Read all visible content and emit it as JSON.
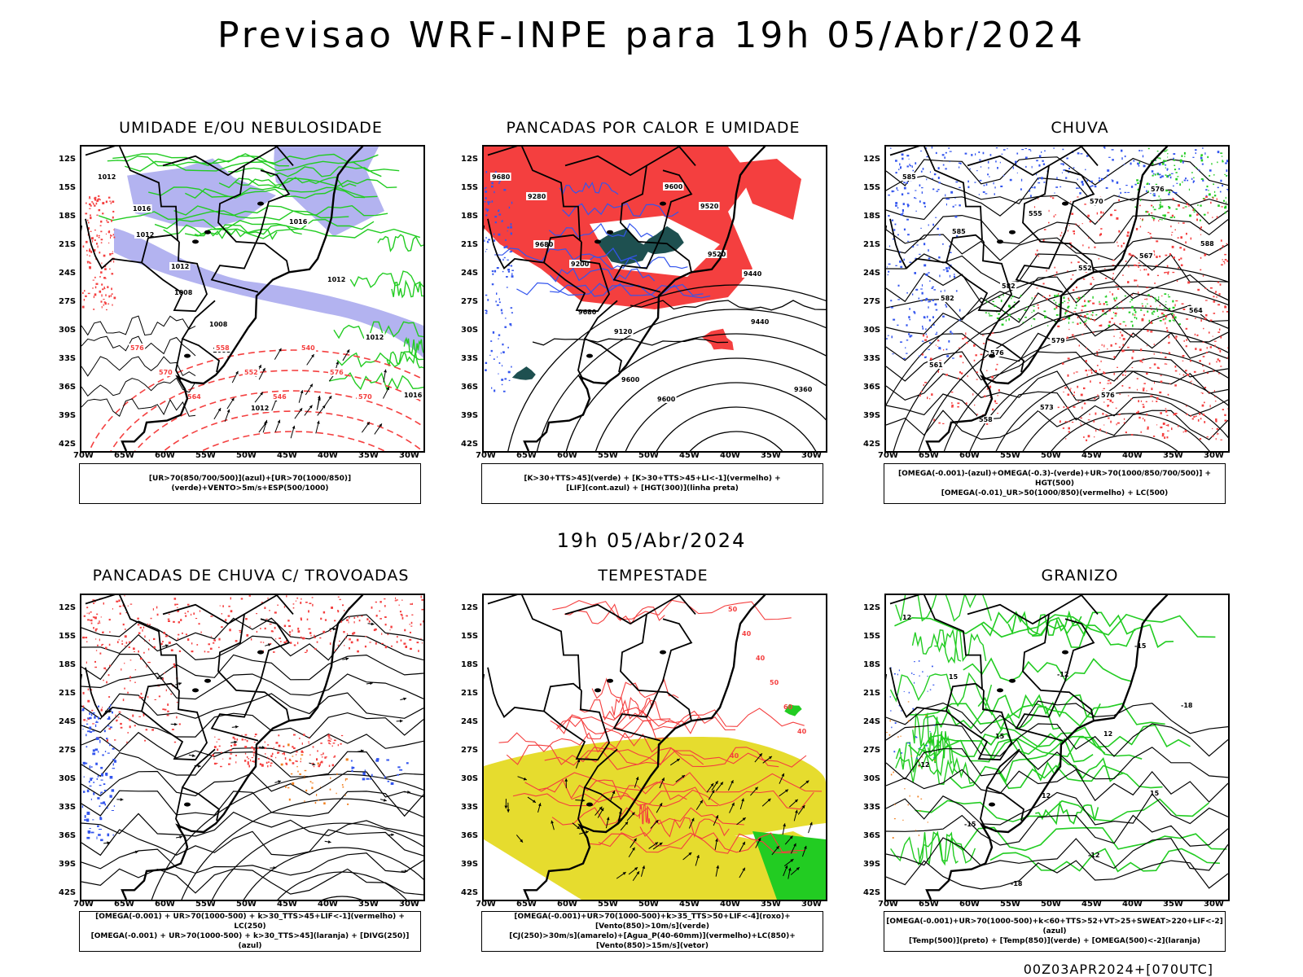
{
  "title": "Previsao WRF-INPE  para 19h 05/Abr/2024",
  "mid_title": "19h 05/Abr/2024",
  "run_stamp": "00Z03APR2024+[070UTC]",
  "lat_ticks": [
    "12S",
    "15S",
    "18S",
    "21S",
    "24S",
    "27S",
    "30S",
    "33S",
    "36S",
    "39S",
    "42S"
  ],
  "lon_ticks": [
    "70W",
    "65W",
    "60W",
    "55W",
    "50W",
    "45W",
    "40W",
    "35W",
    "30W"
  ],
  "colors": {
    "blue": "#3355ee",
    "lavender": "#b3b3f0",
    "green": "#22cc22",
    "red": "#f43f3f",
    "yellow": "#e6dc2e",
    "darkteal": "#1e5050",
    "orange": "#f08020",
    "black": "#000000"
  },
  "panels": [
    {
      "title": "UMIDADE E/OU NEBULOSIDADE",
      "legend": [
        "[UR>70(850/700/500)](azul)+[UR>70(1000/850)](verde)+VENTO>5m/s+ESP(500/1000)"
      ],
      "labels": [
        "1012",
        "1012",
        "1008",
        "1008",
        "1012",
        "1016",
        "1012",
        "1012",
        "1016",
        "1016",
        "1012",
        "1008",
        "576",
        "570",
        "564",
        "558",
        "552",
        "546",
        "540",
        "576",
        "570"
      ]
    },
    {
      "title": "PANCADAS POR CALOR E UMIDADE",
      "legend": [
        "[K>30+TTS>45](verde) + [K>30+TTS>45+LI<-1](vermelho) +",
        "[LIF](cont.azul) + [HGT(300)](linha preta)"
      ],
      "labels": [
        "9680",
        "9680",
        "9680",
        "9600",
        "9600",
        "9520",
        "9440",
        "9360",
        "9280",
        "9200",
        "9120",
        "9600",
        "9520",
        "9440"
      ]
    },
    {
      "title": "CHUVA",
      "legend": [
        "[OMEGA(-0.001)-(azul)+OMEGA(-0.3)-(verde)+UR>70(1000/850/700/500)] + HGT(500)",
        "[OMEGA(-0.01)_UR>50(1000/850)(vermelho) + LC(500)"
      ],
      "labels": [
        "585",
        "585",
        "582",
        "579",
        "576",
        "576",
        "588",
        "582",
        "576",
        "573",
        "570",
        "567",
        "564",
        "561",
        "558",
        "555",
        "552"
      ]
    },
    {
      "title": "PANCADAS DE CHUVA C/ TROVOADAS",
      "legend": [
        "[OMEGA(-0.001) + UR>70(1000-500) + k>30_TTS>45+LIF<-1](vermelho) + LC(250)",
        "[OMEGA(-0.001) + UR>70(1000-500) + k>30_TTS>45](laranja) + [DIVG(250)](azul)"
      ],
      "labels": []
    },
    {
      "title": "TEMPESTADE",
      "legend": [
        "[OMEGA(-0.001)+UR>70(1000-500)+k>35_TTS>50+LIF<-4](roxo)+[Vento(850)>10m/s](verde)",
        "[CJ(250)>30m/s](amarelo)+[Agua_P(40-60mm)](vermelho)+LC(850)+[Vento(850)>15m/s](vetor)"
      ],
      "labels": [
        "50",
        "40",
        "40",
        "50",
        "60",
        "40",
        "40"
      ]
    },
    {
      "title": "GRANIZO",
      "legend": [
        "[OMEGA(-0.001)+UR>70(1000-500)+k<60+TTS>52+VT>25+SWEAT>220+LIF<-2](azul)",
        "[Temp(500)](preto) + [Temp(850)](verde) + [OMEGA(500)<-2](laranja)"
      ],
      "labels": [
        "12",
        "15",
        "15",
        "12",
        "-12",
        "-15",
        "-18",
        "-12",
        "-15",
        "-18",
        "-12",
        "12",
        "15"
      ]
    }
  ]
}
